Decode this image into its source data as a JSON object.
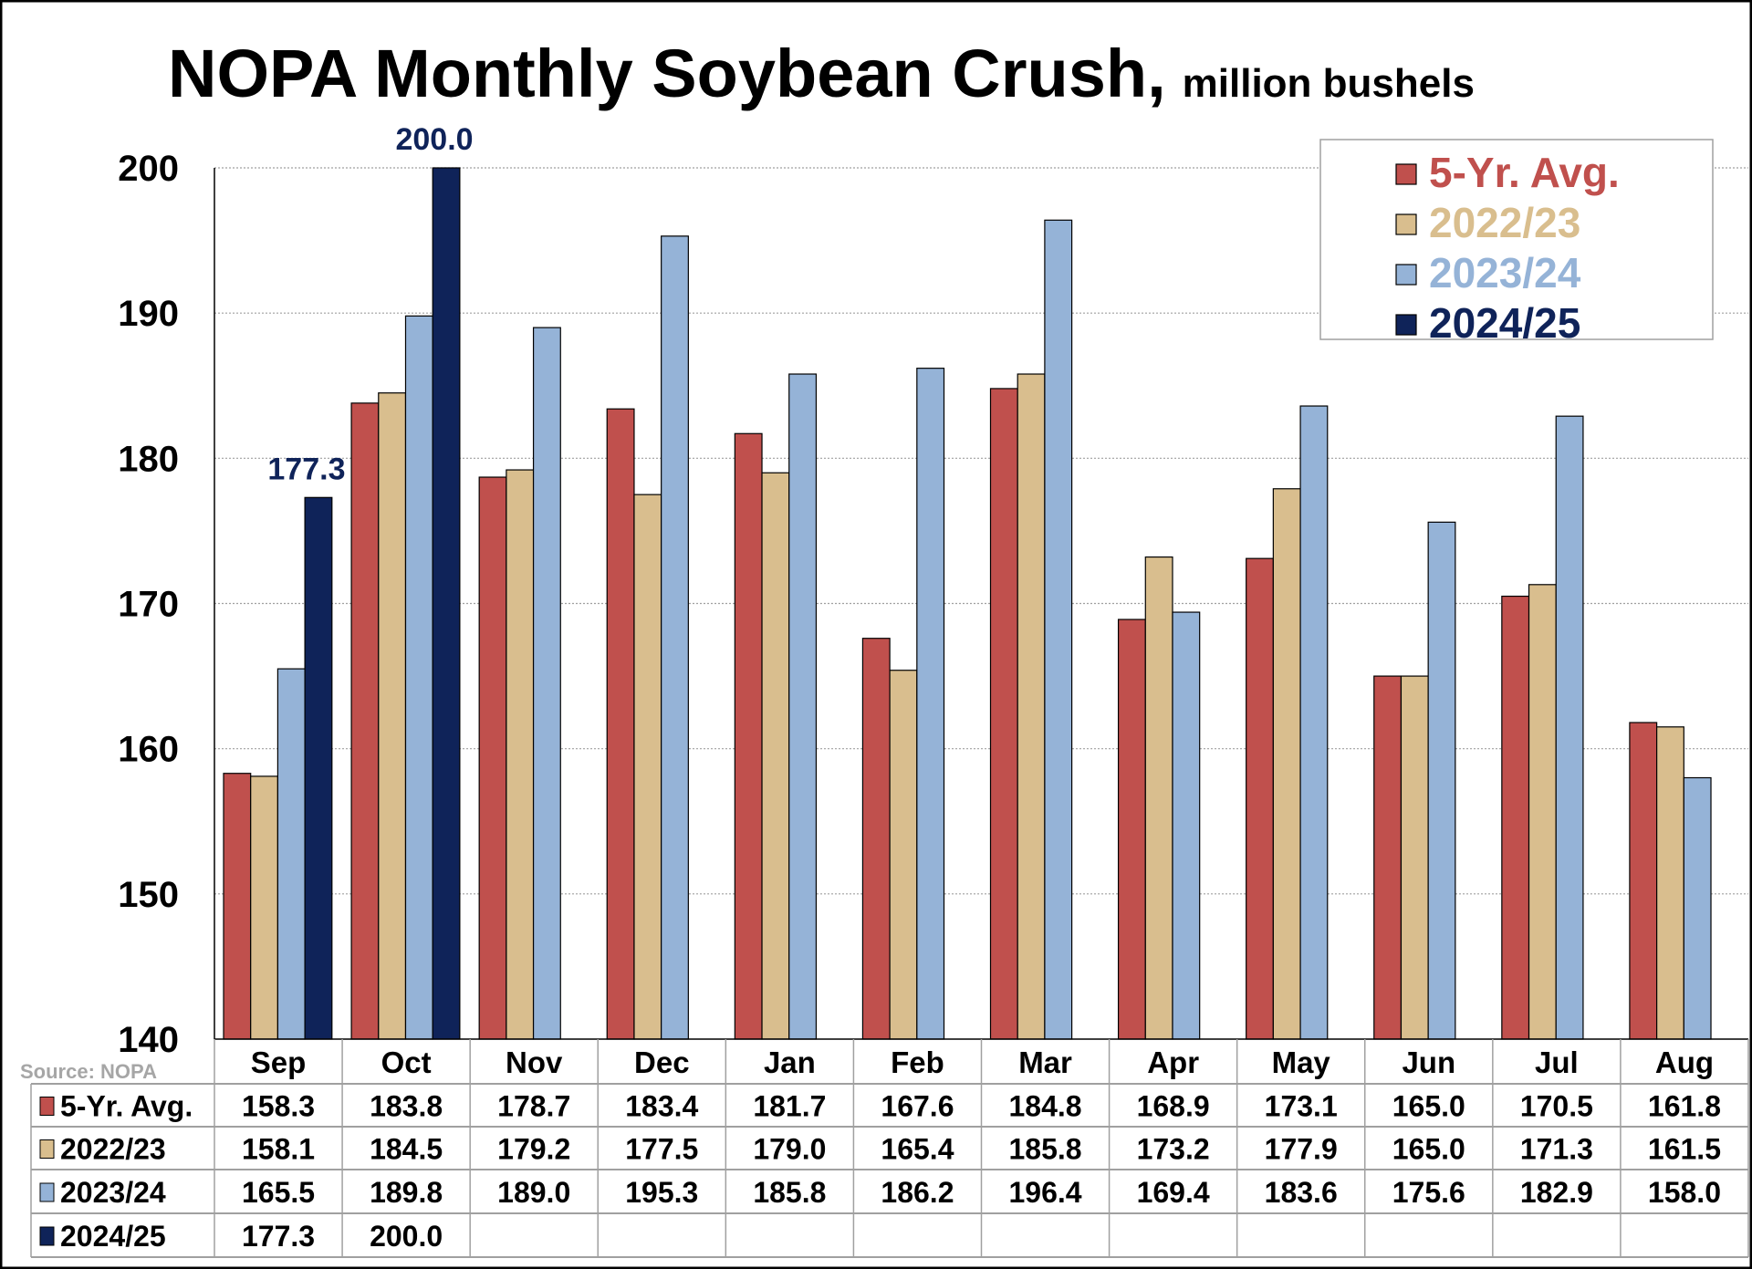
{
  "chart_data": {
    "type": "bar",
    "title": "NOPA Monthly Soybean Crush,",
    "subtitle": "million bushels",
    "source": "Source: NOPA",
    "categories": [
      "Sep",
      "Oct",
      "Nov",
      "Dec",
      "Jan",
      "Feb",
      "Mar",
      "Apr",
      "May",
      "Jun",
      "Jul",
      "Aug"
    ],
    "ylim": [
      140,
      200
    ],
    "yticks": [
      140,
      150,
      160,
      170,
      180,
      190,
      200
    ],
    "grid": true,
    "legend_position": "top-right",
    "series": [
      {
        "name": "5-Yr. Avg.",
        "color": "#C0504D",
        "values": [
          158.3,
          183.8,
          178.7,
          183.4,
          181.7,
          167.6,
          184.8,
          168.9,
          173.1,
          165.0,
          170.5,
          161.8
        ]
      },
      {
        "name": "2022/23",
        "color": "#D9BE8E",
        "values": [
          158.1,
          184.5,
          179.2,
          177.5,
          179.0,
          165.4,
          185.8,
          173.2,
          177.9,
          165.0,
          171.3,
          161.5
        ]
      },
      {
        "name": "2023/24",
        "color": "#95B3D7",
        "values": [
          165.5,
          189.8,
          189.0,
          195.3,
          185.8,
          186.2,
          196.4,
          169.4,
          183.6,
          175.6,
          182.9,
          158.0
        ]
      },
      {
        "name": "2024/25",
        "color": "#0F2359",
        "values": [
          177.3,
          200.0,
          null,
          null,
          null,
          null,
          null,
          null,
          null,
          null,
          null,
          null
        ]
      }
    ],
    "data_labels": [
      {
        "series": "2024/25",
        "category": "Sep",
        "text": "177.3"
      },
      {
        "series": "2024/25",
        "category": "Oct",
        "text": "200.0"
      }
    ],
    "table_text": [
      [
        "158.3",
        "183.8",
        "178.7",
        "183.4",
        "181.7",
        "167.6",
        "184.8",
        "168.9",
        "173.1",
        "165.0",
        "170.5",
        "161.8"
      ],
      [
        "158.1",
        "184.5",
        "179.2",
        "177.5",
        "179.0",
        "165.4",
        "185.8",
        "173.2",
        "177.9",
        "165.0",
        "171.3",
        "161.5"
      ],
      [
        "165.5",
        "189.8",
        "189.0",
        "195.3",
        "185.8",
        "186.2",
        "196.4",
        "169.4",
        "183.6",
        "175.6",
        "182.9",
        "158.0"
      ],
      [
        "177.3",
        "200.0",
        "",
        "",
        "",
        "",
        "",
        "",
        "",
        "",
        "",
        ""
      ]
    ]
  }
}
